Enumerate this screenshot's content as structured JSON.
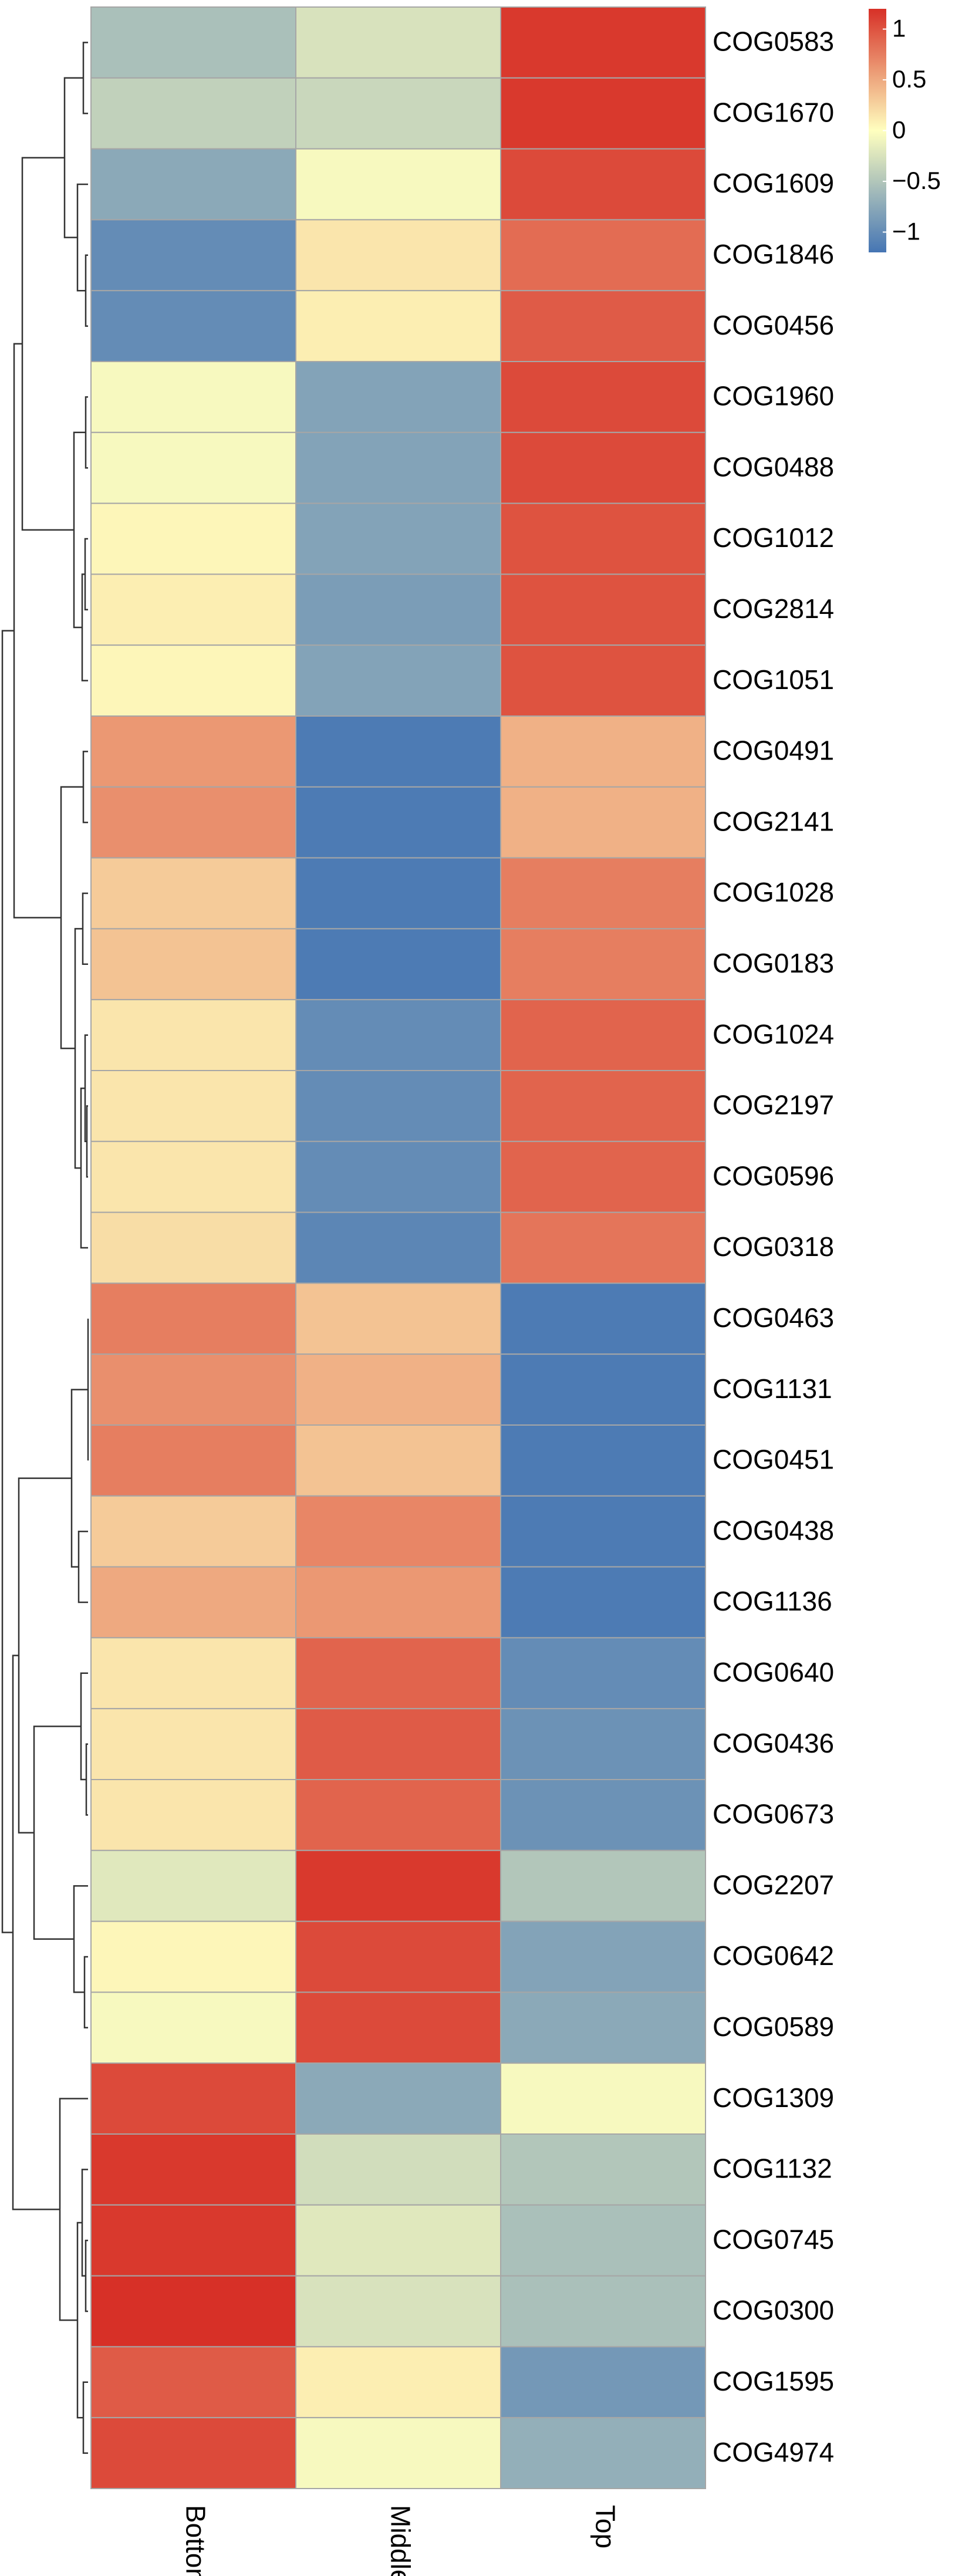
{
  "chart_data": {
    "type": "heatmap",
    "title": "",
    "xlabel": "",
    "ylabel": "",
    "columns": [
      "Bottom",
      "Middle",
      "Top"
    ],
    "rows": [
      "COG0583",
      "COG1670",
      "COG1609",
      "COG1846",
      "COG0456",
      "COG1960",
      "COG0488",
      "COG1012",
      "COG2814",
      "COG1051",
      "COG0491",
      "COG2141",
      "COG1028",
      "COG0183",
      "COG1024",
      "COG2197",
      "COG0596",
      "COG0318",
      "COG0463",
      "COG1131",
      "COG0451",
      "COG0438",
      "COG1136",
      "COG0640",
      "COG0436",
      "COG0673",
      "COG2207",
      "COG0642",
      "COG0589",
      "COG1309",
      "COG1132",
      "COG0745",
      "COG0300",
      "COG1595",
      "COG4974"
    ],
    "values": [
      [
        -0.55,
        -0.25,
        1.15
      ],
      [
        -0.4,
        -0.35,
        1.15
      ],
      [
        -0.75,
        -0.05,
        1.05
      ],
      [
        -1.0,
        0.15,
        0.85
      ],
      [
        -1.0,
        0.1,
        0.95
      ],
      [
        -0.05,
        -0.8,
        1.05
      ],
      [
        -0.05,
        -0.8,
        1.05
      ],
      [
        0.05,
        -0.8,
        1.0
      ],
      [
        0.1,
        -0.85,
        1.0
      ],
      [
        0.05,
        -0.8,
        1.0
      ],
      [
        0.6,
        -1.15,
        0.45
      ],
      [
        0.65,
        -1.15,
        0.45
      ],
      [
        0.3,
        -1.15,
        0.75
      ],
      [
        0.35,
        -1.15,
        0.75
      ],
      [
        0.15,
        -1.0,
        0.9
      ],
      [
        0.15,
        -1.0,
        0.9
      ],
      [
        0.15,
        -1.0,
        0.9
      ],
      [
        0.2,
        -1.05,
        0.8
      ],
      [
        0.75,
        0.35,
        -1.15
      ],
      [
        0.65,
        0.45,
        -1.15
      ],
      [
        0.75,
        0.35,
        -1.15
      ],
      [
        0.3,
        0.7,
        -1.15
      ],
      [
        0.5,
        0.6,
        -1.15
      ],
      [
        0.15,
        0.9,
        -1.0
      ],
      [
        0.15,
        0.95,
        -0.95
      ],
      [
        0.15,
        0.9,
        -0.95
      ],
      [
        -0.2,
        1.15,
        -0.5
      ],
      [
        0.05,
        1.05,
        -0.8
      ],
      [
        -0.05,
        1.05,
        -0.75
      ],
      [
        1.05,
        -0.75,
        -0.05
      ],
      [
        1.15,
        -0.3,
        -0.5
      ],
      [
        1.15,
        -0.2,
        -0.55
      ],
      [
        1.2,
        -0.25,
        -0.55
      ],
      [
        0.95,
        0.1,
        -0.9
      ],
      [
        1.05,
        -0.05,
        -0.7
      ]
    ],
    "legend": {
      "position": "top-right",
      "ticks": [
        "1",
        "0.5",
        "0",
        "−0.5",
        "−1"
      ],
      "tick_values": [
        1,
        0.5,
        0,
        -0.5,
        -1
      ],
      "range": [
        -1.2,
        1.2
      ]
    },
    "colors": {
      "low": "#4575b4",
      "mid": "#ffffbf",
      "high": "#d73027",
      "cell_border": "#a6a6a6",
      "dendrogram": "#333333"
    },
    "row_dendrogram": "present",
    "grid": false
  }
}
